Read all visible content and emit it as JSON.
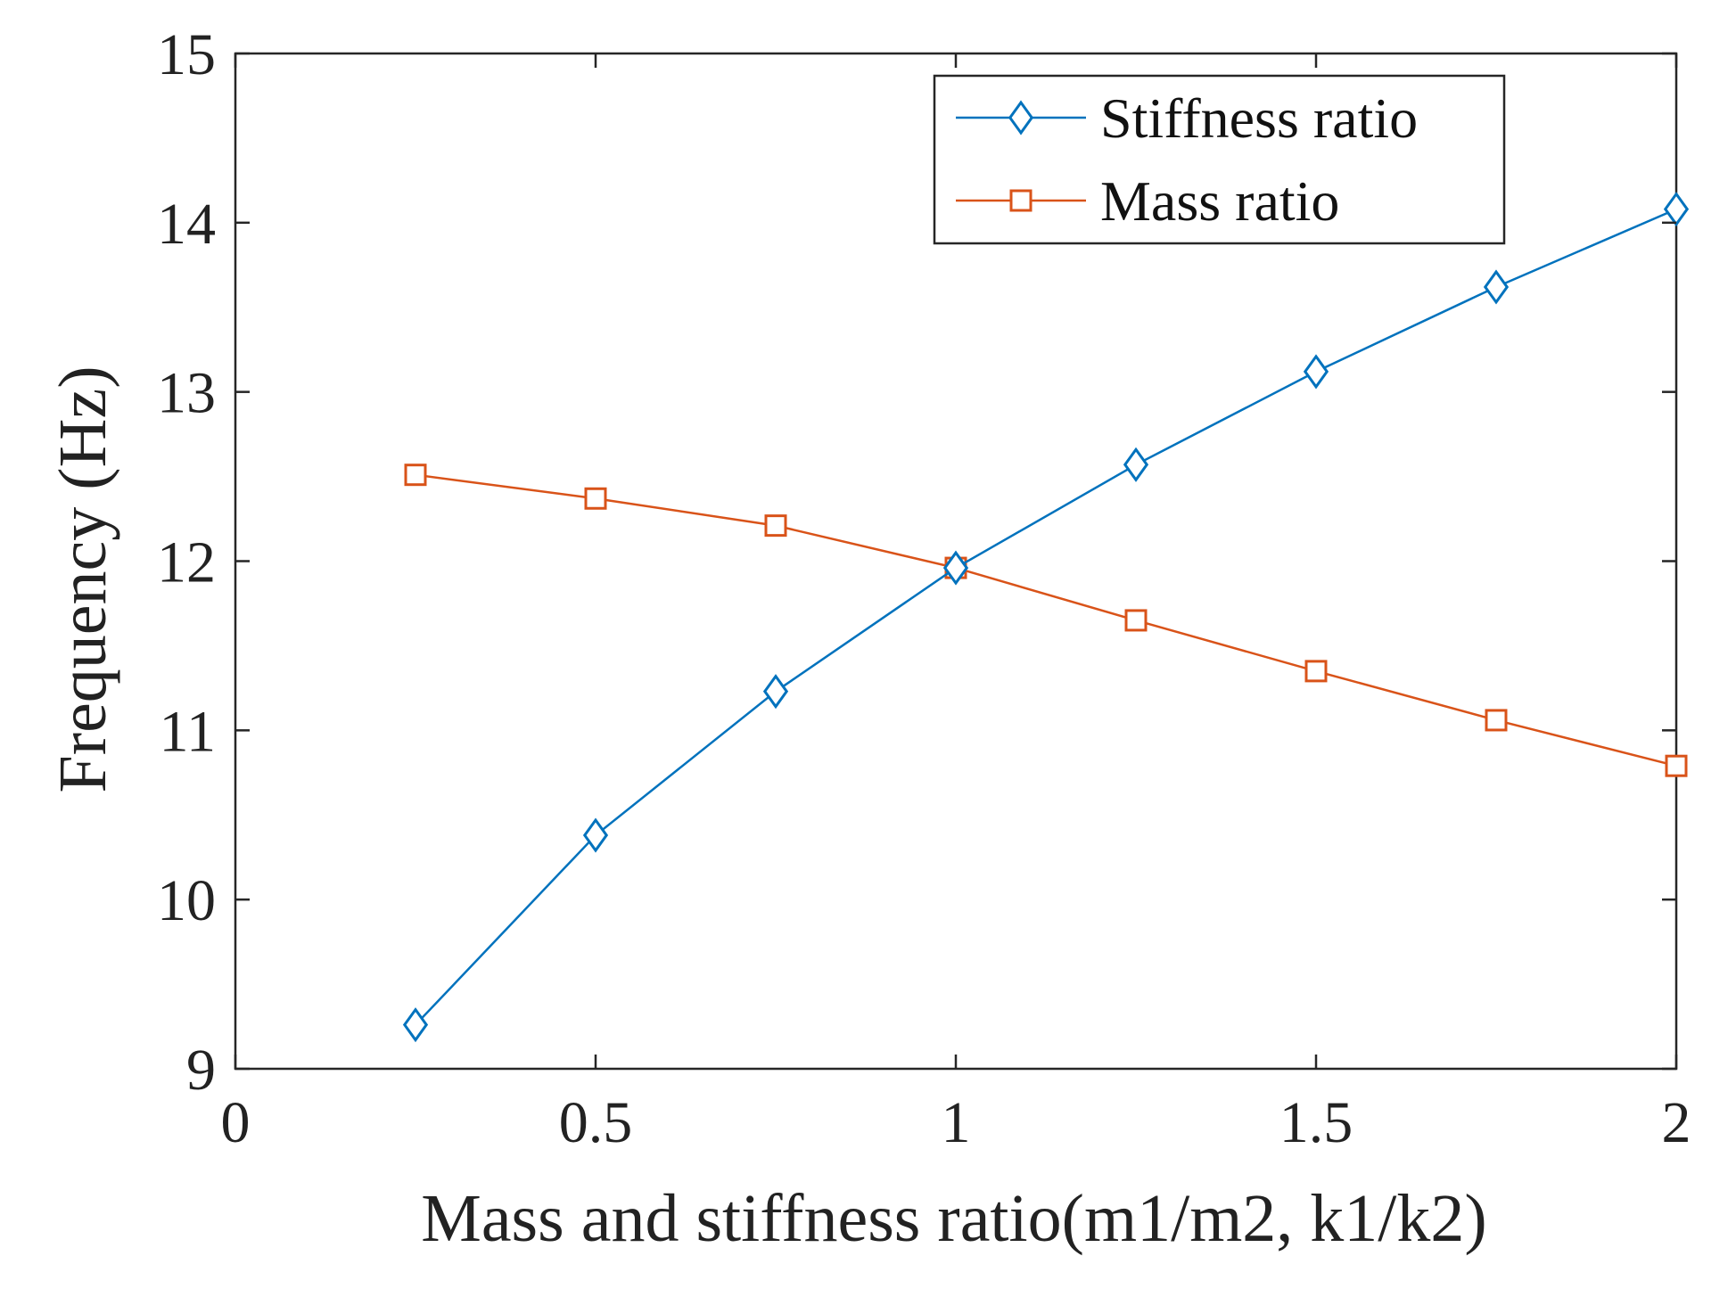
{
  "chart_data": {
    "type": "line",
    "title": "",
    "xlabel": "Mass and stiffness ratio(m1/m2, k1/k2)",
    "ylabel": "Frequency (Hz)",
    "xlim": [
      0,
      2
    ],
    "ylim": [
      9,
      15
    ],
    "xticks": [
      0,
      0.5,
      1,
      1.5,
      2
    ],
    "xtick_labels": [
      "0",
      "0.5",
      "1",
      "1.5",
      "2"
    ],
    "yticks": [
      9,
      10,
      11,
      12,
      13,
      14,
      15
    ],
    "ytick_labels": [
      "9",
      "10",
      "11",
      "12",
      "13",
      "14",
      "15"
    ],
    "grid": false,
    "legend_position": "top-right",
    "x": [
      0.25,
      0.5,
      0.75,
      1.0,
      1.25,
      1.5,
      1.75,
      2.0
    ],
    "series": [
      {
        "name": "Stiffness ratio",
        "marker": "diamond",
        "color": "#0072BD",
        "values": [
          9.26,
          10.38,
          11.23,
          11.96,
          12.57,
          13.12,
          13.62,
          14.08
        ]
      },
      {
        "name": "Mass ratio",
        "marker": "square",
        "color": "#D95319",
        "values": [
          12.51,
          12.37,
          12.21,
          11.96,
          11.65,
          11.35,
          11.06,
          10.79
        ]
      }
    ]
  }
}
